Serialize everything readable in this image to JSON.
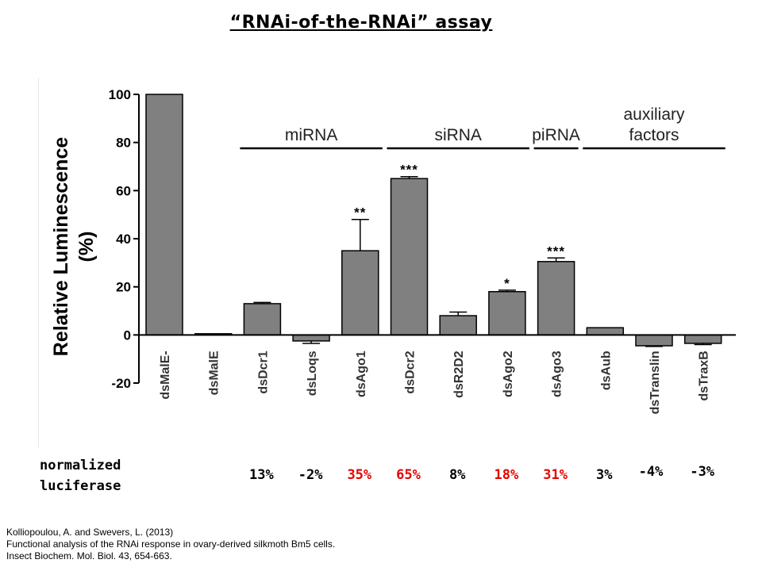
{
  "title": "“RNAi-of-the-RNAi” assay",
  "chart_data": {
    "type": "bar",
    "ylabel": "Relative Luminescence (%)",
    "ylim": [
      -20,
      100
    ],
    "yticks": [
      -20,
      0,
      20,
      40,
      60,
      80,
      100
    ],
    "bar_color": "#808080",
    "categories": [
      "dsMalE-",
      "dsMalE",
      "dsDcr1",
      "dsLoqs",
      "dsAgo1",
      "dsDcr2",
      "dsR2D2",
      "dsAgo2",
      "dsAgo3",
      "dsAub",
      "dsTranslin",
      "dsTraxB"
    ],
    "values": [
      100,
      0.5,
      13,
      -2.5,
      35,
      65,
      8,
      18,
      30.5,
      3,
      -4.5,
      -3.5
    ],
    "errors": [
      0,
      0,
      0.5,
      1,
      13,
      0.8,
      1.5,
      0.6,
      1.5,
      0,
      0.3,
      0.5
    ],
    "significance": [
      "",
      "",
      "",
      "",
      "**",
      "***",
      "",
      "*",
      "***",
      "",
      "",
      ""
    ],
    "groups": [
      {
        "label": [
          "miRNA"
        ],
        "from": 2,
        "to": 4
      },
      {
        "label": [
          "siRNA"
        ],
        "from": 5,
        "to": 7
      },
      {
        "label": [
          "piRNA"
        ],
        "from": 8,
        "to": 8
      },
      {
        "label": [
          "auxiliary",
          "factors"
        ],
        "from": 9,
        "to": 11
      }
    ]
  },
  "normalized": {
    "label_lines": [
      "normalized",
      "luciferase"
    ],
    "values": [
      "",
      "",
      "13%",
      "-2%",
      "35%",
      "65%",
      "8%",
      "18%",
      "31%",
      "3%",
      "-4%",
      "-3%"
    ],
    "highlight": [
      false,
      false,
      false,
      false,
      true,
      true,
      false,
      true,
      true,
      false,
      false,
      false
    ],
    "highlight_color": "#e60000"
  },
  "citation": [
    "Kolliopoulou, A. and Swevers, L. (2013)",
    "Functional analysis of the RNAi response in ovary-derived  silkmoth Bm5 cells.",
    "Insect Biochem. Mol. Biol. 43, 654-663."
  ]
}
